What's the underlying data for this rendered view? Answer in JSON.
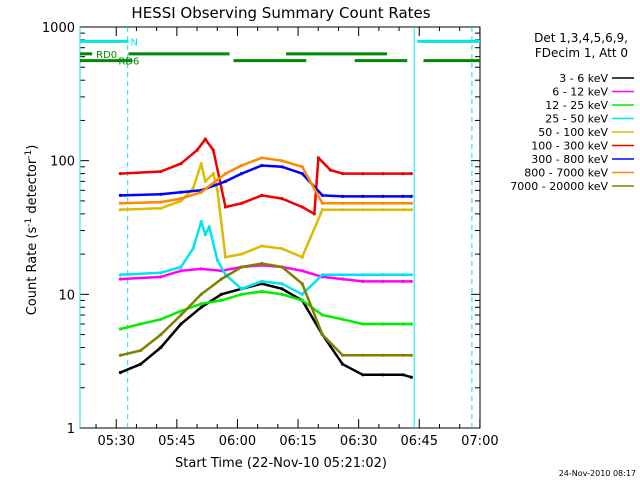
{
  "chart_data": {
    "type": "line",
    "title": "HESSI Observing Summary Count Rates",
    "xlabel": "Start Time (22-Nov-10 05:21:02)",
    "ylabel": "Count Rate (s",
    "ylabel_sup": "-1",
    "ylabel_mid": " detector",
    "ylabel_sup2": "-1",
    "ylabel_end": ")",
    "footer": "24-Nov-2010 08:17",
    "yscale": "log",
    "ylim": [
      1,
      1000
    ],
    "xlim_minutes": [
      0,
      99
    ],
    "xtick_labels": [
      "05:30",
      "05:45",
      "06:00",
      "06:15",
      "06:30",
      "06:45",
      "07:00"
    ],
    "xtick_minutes": [
      8.97,
      23.97,
      38.97,
      53.97,
      68.97,
      83.97,
      98.97
    ],
    "ytick_labels": [
      "1",
      "10",
      "100",
      "1000"
    ],
    "ytick_values": [
      1,
      10,
      100,
      1000
    ],
    "legend_header": [
      "Det 1,3,4,5,6,9,",
      "FDecim 1, Att 0"
    ],
    "legend_placement": "top-right outside",
    "flags": [
      {
        "label": "N",
        "color": "#00e5ee",
        "y": 780,
        "segments": [
          [
            0,
            12
          ],
          [
            83.5,
            99
          ]
        ]
      },
      {
        "label": "RD0",
        "color": "#008800",
        "y": 630,
        "segments": [
          [
            0,
            3
          ],
          [
            12,
            37
          ],
          [
            51,
            76
          ]
        ]
      },
      {
        "label": "RD6",
        "color": "#008800",
        "y": 560,
        "segments": [
          [
            0,
            13
          ],
          [
            38,
            56
          ],
          [
            68,
            81
          ],
          [
            85,
            99
          ]
        ]
      }
    ],
    "vlines": [
      {
        "minute": 0,
        "style": "solid",
        "color": "#00e5ee"
      },
      {
        "minute": 11.8,
        "style": "dashed",
        "color": "#00e5ee"
      },
      {
        "minute": 82.7,
        "style": "solid",
        "color": "#00e5ee"
      },
      {
        "minute": 97.0,
        "style": "dashed",
        "color": "#00e5ee"
      }
    ],
    "series": [
      {
        "name": "3 - 6 keV",
        "color": "#000000",
        "points": [
          [
            10,
            2.6
          ],
          [
            15,
            3
          ],
          [
            20,
            4
          ],
          [
            25,
            6
          ],
          [
            30,
            8
          ],
          [
            35,
            10
          ],
          [
            40,
            11
          ],
          [
            45,
            12
          ],
          [
            50,
            11
          ],
          [
            55,
            9
          ],
          [
            60,
            5
          ],
          [
            65,
            3
          ],
          [
            70,
            2.5
          ],
          [
            75,
            2.5
          ],
          [
            80,
            2.5
          ],
          [
            82,
            2.4
          ]
        ]
      },
      {
        "name": "6 - 12 keV",
        "color": "#ff00ff",
        "points": [
          [
            10,
            13
          ],
          [
            20,
            13.5
          ],
          [
            25,
            15
          ],
          [
            30,
            15.5
          ],
          [
            35,
            15
          ],
          [
            40,
            16
          ],
          [
            45,
            16.5
          ],
          [
            50,
            16
          ],
          [
            55,
            15
          ],
          [
            60,
            13.5
          ],
          [
            65,
            13
          ],
          [
            70,
            12.5
          ],
          [
            75,
            12.5
          ],
          [
            80,
            12.5
          ],
          [
            82,
            12.5
          ]
        ]
      },
      {
        "name": "12 - 25 keV",
        "color": "#00ee00",
        "points": [
          [
            10,
            5.5
          ],
          [
            15,
            6
          ],
          [
            20,
            6.5
          ],
          [
            25,
            7.5
          ],
          [
            30,
            8.5
          ],
          [
            35,
            9
          ],
          [
            40,
            10
          ],
          [
            45,
            10.5
          ],
          [
            50,
            10
          ],
          [
            55,
            9
          ],
          [
            60,
            7
          ],
          [
            65,
            6.5
          ],
          [
            70,
            6
          ],
          [
            75,
            6
          ],
          [
            80,
            6
          ],
          [
            82,
            6
          ]
        ]
      },
      {
        "name": "25 - 50 keV",
        "color": "#00e5ee",
        "points": [
          [
            10,
            14
          ],
          [
            20,
            14.5
          ],
          [
            25,
            16
          ],
          [
            28,
            22
          ],
          [
            30,
            35
          ],
          [
            31,
            28
          ],
          [
            32,
            32
          ],
          [
            34,
            18
          ],
          [
            36,
            14
          ],
          [
            40,
            11
          ],
          [
            45,
            12.5
          ],
          [
            50,
            12
          ],
          [
            55,
            10
          ],
          [
            60,
            14
          ],
          [
            65,
            14
          ],
          [
            70,
            14
          ],
          [
            75,
            14
          ],
          [
            80,
            14
          ],
          [
            82,
            14
          ]
        ]
      },
      {
        "name": "50 - 100 keV",
        "color": "#ddbb00",
        "points": [
          [
            10,
            43
          ],
          [
            20,
            44
          ],
          [
            25,
            50
          ],
          [
            28,
            62
          ],
          [
            30,
            95
          ],
          [
            31,
            70
          ],
          [
            33,
            80
          ],
          [
            34,
            60
          ],
          [
            36,
            19
          ],
          [
            40,
            20
          ],
          [
            45,
            23
          ],
          [
            50,
            22
          ],
          [
            55,
            19
          ],
          [
            60,
            43
          ],
          [
            65,
            43
          ],
          [
            70,
            43
          ],
          [
            75,
            43
          ],
          [
            80,
            43
          ],
          [
            82,
            43
          ]
        ]
      },
      {
        "name": "100 - 300 keV",
        "color": "#ee0000",
        "points": [
          [
            10,
            80
          ],
          [
            20,
            83
          ],
          [
            25,
            95
          ],
          [
            29,
            120
          ],
          [
            31,
            145
          ],
          [
            33,
            120
          ],
          [
            36,
            45
          ],
          [
            40,
            48
          ],
          [
            45,
            55
          ],
          [
            50,
            52
          ],
          [
            55,
            45
          ],
          [
            58,
            40
          ],
          [
            59,
            105
          ],
          [
            62,
            85
          ],
          [
            65,
            80
          ],
          [
            70,
            80
          ],
          [
            75,
            80
          ],
          [
            80,
            80
          ],
          [
            82,
            80
          ]
        ]
      },
      {
        "name": "300 - 800 keV",
        "color": "#0000ff",
        "points": [
          [
            10,
            55
          ],
          [
            20,
            56
          ],
          [
            25,
            58
          ],
          [
            30,
            60
          ],
          [
            36,
            70
          ],
          [
            40,
            80
          ],
          [
            45,
            92
          ],
          [
            50,
            90
          ],
          [
            55,
            80
          ],
          [
            60,
            55
          ],
          [
            65,
            54
          ],
          [
            70,
            54
          ],
          [
            75,
            54
          ],
          [
            80,
            54
          ],
          [
            82,
            54
          ]
        ]
      },
      {
        "name": "800 - 7000 keV",
        "color": "#ff8800",
        "points": [
          [
            10,
            48
          ],
          [
            20,
            49
          ],
          [
            25,
            52
          ],
          [
            30,
            58
          ],
          [
            36,
            80
          ],
          [
            40,
            92
          ],
          [
            45,
            105
          ],
          [
            50,
            100
          ],
          [
            55,
            90
          ],
          [
            60,
            48
          ],
          [
            65,
            48
          ],
          [
            70,
            48
          ],
          [
            75,
            48
          ],
          [
            80,
            48
          ],
          [
            82,
            48
          ]
        ]
      },
      {
        "name": "7000 - 20000 keV",
        "color": "#808000",
        "points": [
          [
            10,
            3.5
          ],
          [
            15,
            3.8
          ],
          [
            20,
            5
          ],
          [
            25,
            7
          ],
          [
            30,
            10
          ],
          [
            35,
            13
          ],
          [
            40,
            16
          ],
          [
            45,
            17
          ],
          [
            50,
            16
          ],
          [
            55,
            12
          ],
          [
            60,
            5
          ],
          [
            65,
            3.5
          ],
          [
            70,
            3.5
          ],
          [
            75,
            3.5
          ],
          [
            80,
            3.5
          ],
          [
            82,
            3.5
          ]
        ]
      }
    ]
  }
}
